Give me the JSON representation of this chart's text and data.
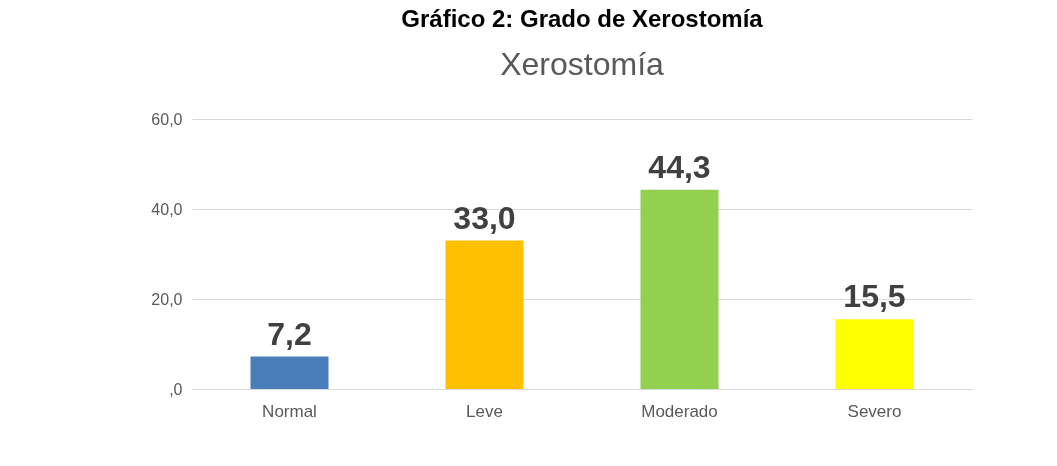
{
  "chart_data": {
    "type": "bar",
    "title": "Gráfico 2: Grado de Xerostomía",
    "subtitle": "Xerostomía",
    "categories": [
      "Normal",
      "Leve",
      "Moderado",
      "Severo"
    ],
    "values": [
      7.2,
      33.0,
      44.3,
      15.5
    ],
    "colors": [
      "#4a7ebb",
      "#ffc000",
      "#92d050",
      "#ffff00"
    ],
    "value_labels": [
      "7,2",
      "33,0",
      "44,3",
      "15,5"
    ],
    "ylim": [
      0,
      60
    ],
    "yticks": [
      {
        "value": 0,
        "label": ",0"
      },
      {
        "value": 20,
        "label": "20,0"
      },
      {
        "value": 40,
        "label": "40,0"
      },
      {
        "value": 60,
        "label": "60,0"
      }
    ],
    "grid": "y"
  }
}
